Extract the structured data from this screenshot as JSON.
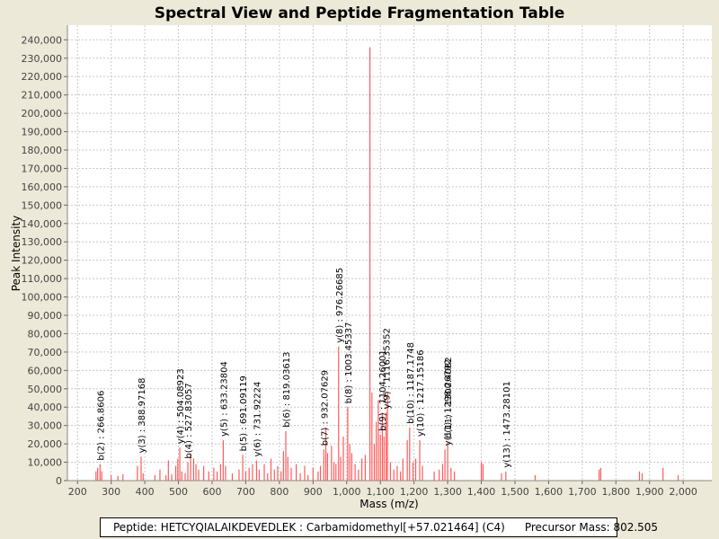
{
  "chart_data": {
    "type": "bar",
    "title": "Spectral View and Peptide Fragmentation Table",
    "xlabel": "Mass (m/z)",
    "ylabel": "Peak Intensity",
    "xlim": [
      170,
      2085
    ],
    "ylim": [
      0,
      248000
    ],
    "xticks": [
      200,
      300,
      400,
      500,
      600,
      700,
      800,
      900,
      1000,
      1100,
      1200,
      1300,
      1400,
      1500,
      1600,
      1700,
      1800,
      1900,
      2000
    ],
    "xtick_labels": [
      "200",
      "300",
      "400",
      "500",
      "600",
      "700",
      "800",
      "900",
      "1,000",
      "1,100",
      "1,200",
      "1,300",
      "1,400",
      "1,500",
      "1,600",
      "1,700",
      "1,800",
      "1,900",
      "2,000"
    ],
    "yticks": [
      0,
      10000,
      20000,
      30000,
      40000,
      50000,
      60000,
      70000,
      80000,
      90000,
      100000,
      110000,
      120000,
      130000,
      140000,
      150000,
      160000,
      170000,
      180000,
      190000,
      200000,
      210000,
      220000,
      230000,
      240000
    ],
    "ytick_labels": [
      "0",
      "10,000",
      "20,000",
      "30,000",
      "40,000",
      "50,000",
      "60,000",
      "70,000",
      "80,000",
      "90,000",
      "100,000",
      "110,000",
      "120,000",
      "130,000",
      "140,000",
      "150,000",
      "160,000",
      "170,000",
      "180,000",
      "190,000",
      "200,000",
      "210,000",
      "220,000",
      "230,000",
      "240,000"
    ],
    "peaks": [
      [
        255,
        5000
      ],
      [
        260,
        7000
      ],
      [
        267,
        9000
      ],
      [
        272,
        5000
      ],
      [
        300,
        3000
      ],
      [
        320,
        2500
      ],
      [
        335,
        3500
      ],
      [
        378,
        8000
      ],
      [
        389,
        13000
      ],
      [
        395,
        4000
      ],
      [
        430,
        3000
      ],
      [
        445,
        6000
      ],
      [
        463,
        3000
      ],
      [
        470,
        11000
      ],
      [
        480,
        3500
      ],
      [
        492,
        8000
      ],
      [
        498,
        12000
      ],
      [
        504,
        18000
      ],
      [
        510,
        5000
      ],
      [
        520,
        4000
      ],
      [
        528,
        10000
      ],
      [
        536,
        15000
      ],
      [
        545,
        12000
      ],
      [
        552,
        9000
      ],
      [
        560,
        6000
      ],
      [
        575,
        8000
      ],
      [
        590,
        5000
      ],
      [
        605,
        7000
      ],
      [
        615,
        5000
      ],
      [
        625,
        9000
      ],
      [
        633,
        22000
      ],
      [
        640,
        8000
      ],
      [
        660,
        4000
      ],
      [
        680,
        6000
      ],
      [
        691,
        14000
      ],
      [
        700,
        5000
      ],
      [
        710,
        7000
      ],
      [
        720,
        9000
      ],
      [
        732,
        11000
      ],
      [
        740,
        6000
      ],
      [
        755,
        9000
      ],
      [
        765,
        4000
      ],
      [
        775,
        12000
      ],
      [
        785,
        6000
      ],
      [
        795,
        8000
      ],
      [
        805,
        5000
      ],
      [
        812,
        16000
      ],
      [
        819,
        27000
      ],
      [
        825,
        13000
      ],
      [
        835,
        7000
      ],
      [
        850,
        9000
      ],
      [
        862,
        4000
      ],
      [
        875,
        8000
      ],
      [
        885,
        3000
      ],
      [
        900,
        7000
      ],
      [
        915,
        5000
      ],
      [
        922,
        8000
      ],
      [
        932,
        17000
      ],
      [
        938,
        29000
      ],
      [
        943,
        15000
      ],
      [
        955,
        19000
      ],
      [
        962,
        10000
      ],
      [
        968,
        9000
      ],
      [
        976,
        73000
      ],
      [
        982,
        13000
      ],
      [
        990,
        24000
      ],
      [
        1003,
        40000
      ],
      [
        1009,
        20000
      ],
      [
        1015,
        15000
      ],
      [
        1025,
        9000
      ],
      [
        1035,
        6000
      ],
      [
        1045,
        12000
      ],
      [
        1055,
        14000
      ],
      [
        1069,
        236000
      ],
      [
        1075,
        48000
      ],
      [
        1082,
        20000
      ],
      [
        1088,
        32000
      ],
      [
        1094,
        44000
      ],
      [
        1100,
        25000
      ],
      [
        1106,
        37000
      ],
      [
        1111,
        24000
      ],
      [
        1117,
        37000
      ],
      [
        1121,
        48000
      ],
      [
        1130,
        10000
      ],
      [
        1140,
        6000
      ],
      [
        1150,
        8000
      ],
      [
        1160,
        5000
      ],
      [
        1167,
        12000
      ],
      [
        1180,
        22000
      ],
      [
        1187,
        29000
      ],
      [
        1197,
        10000
      ],
      [
        1205,
        12000
      ],
      [
        1217,
        22000
      ],
      [
        1225,
        8000
      ],
      [
        1260,
        5000
      ],
      [
        1275,
        6000
      ],
      [
        1285,
        9000
      ],
      [
        1292,
        17000
      ],
      [
        1300,
        21000
      ],
      [
        1310,
        7000
      ],
      [
        1320,
        5000
      ],
      [
        1400,
        10000
      ],
      [
        1405,
        9000
      ],
      [
        1460,
        4000
      ],
      [
        1473,
        5000
      ],
      [
        1560,
        3000
      ],
      [
        1750,
        6000
      ],
      [
        1755,
        7000
      ],
      [
        1870,
        5000
      ],
      [
        1878,
        4000
      ],
      [
        1940,
        7000
      ],
      [
        1985,
        3000
      ]
    ],
    "annotations": [
      {
        "label": "b(2) : 266.8606",
        "x": 266.8606,
        "y": 9000
      },
      {
        "label": "y(3) : 388.97168",
        "x": 388.97168,
        "y": 13000
      },
      {
        "label": "y(4) : 504.08923",
        "x": 504.08923,
        "y": 18000
      },
      {
        "label": "b(4) : 527.83057",
        "x": 527.83057,
        "y": 10000
      },
      {
        "label": "y(5) : 633.23804",
        "x": 633.23804,
        "y": 22000
      },
      {
        "label": "b(5) : 691.09119",
        "x": 691.09119,
        "y": 14000
      },
      {
        "label": "y(6) : 731.92224",
        "x": 731.92224,
        "y": 11000
      },
      {
        "label": "b(6) : 819.03613",
        "x": 819.03613,
        "y": 27000
      },
      {
        "label": "b(7) : 932.07629",
        "x": 932.07629,
        "y": 17000
      },
      {
        "label": "y(8) : 976.26685",
        "x": 976.26685,
        "y": 73000
      },
      {
        "label": "b(8) : 1003.45337",
        "x": 1003.45337,
        "y": 40000
      },
      {
        "label": "b(9) : 1104.26001",
        "x": 1104.26001,
        "y": 25000
      },
      {
        "label": "y(9) : 1116.35352",
        "x": 1116.35352,
        "y": 37000
      },
      {
        "label": "b(10) : 1187.1748",
        "x": 1187.1748,
        "y": 29000
      },
      {
        "label": "y(10) : 1217.15186",
        "x": 1217.15186,
        "y": 22000
      },
      {
        "label": "b(11) : 1300.4082",
        "x": 1300.4082,
        "y": 21000
      },
      {
        "label": "y(11) : 1298.26792",
        "x": 1298.26792,
        "y": 17000
      },
      {
        "label": "y(13) : 1473.28101",
        "x": 1473.28101,
        "y": 5000
      }
    ]
  },
  "footer": {
    "peptide": "Peptide: HETCYQIALAIKDEVEDLEK : Carbamidomethyl[+57.021464] (C4)",
    "precursor": "Precursor Mass: 802.505"
  },
  "colors": {
    "peak": "#ff5a5a",
    "grid": "#c8c8c8",
    "plot_bg": "#ffffff"
  }
}
